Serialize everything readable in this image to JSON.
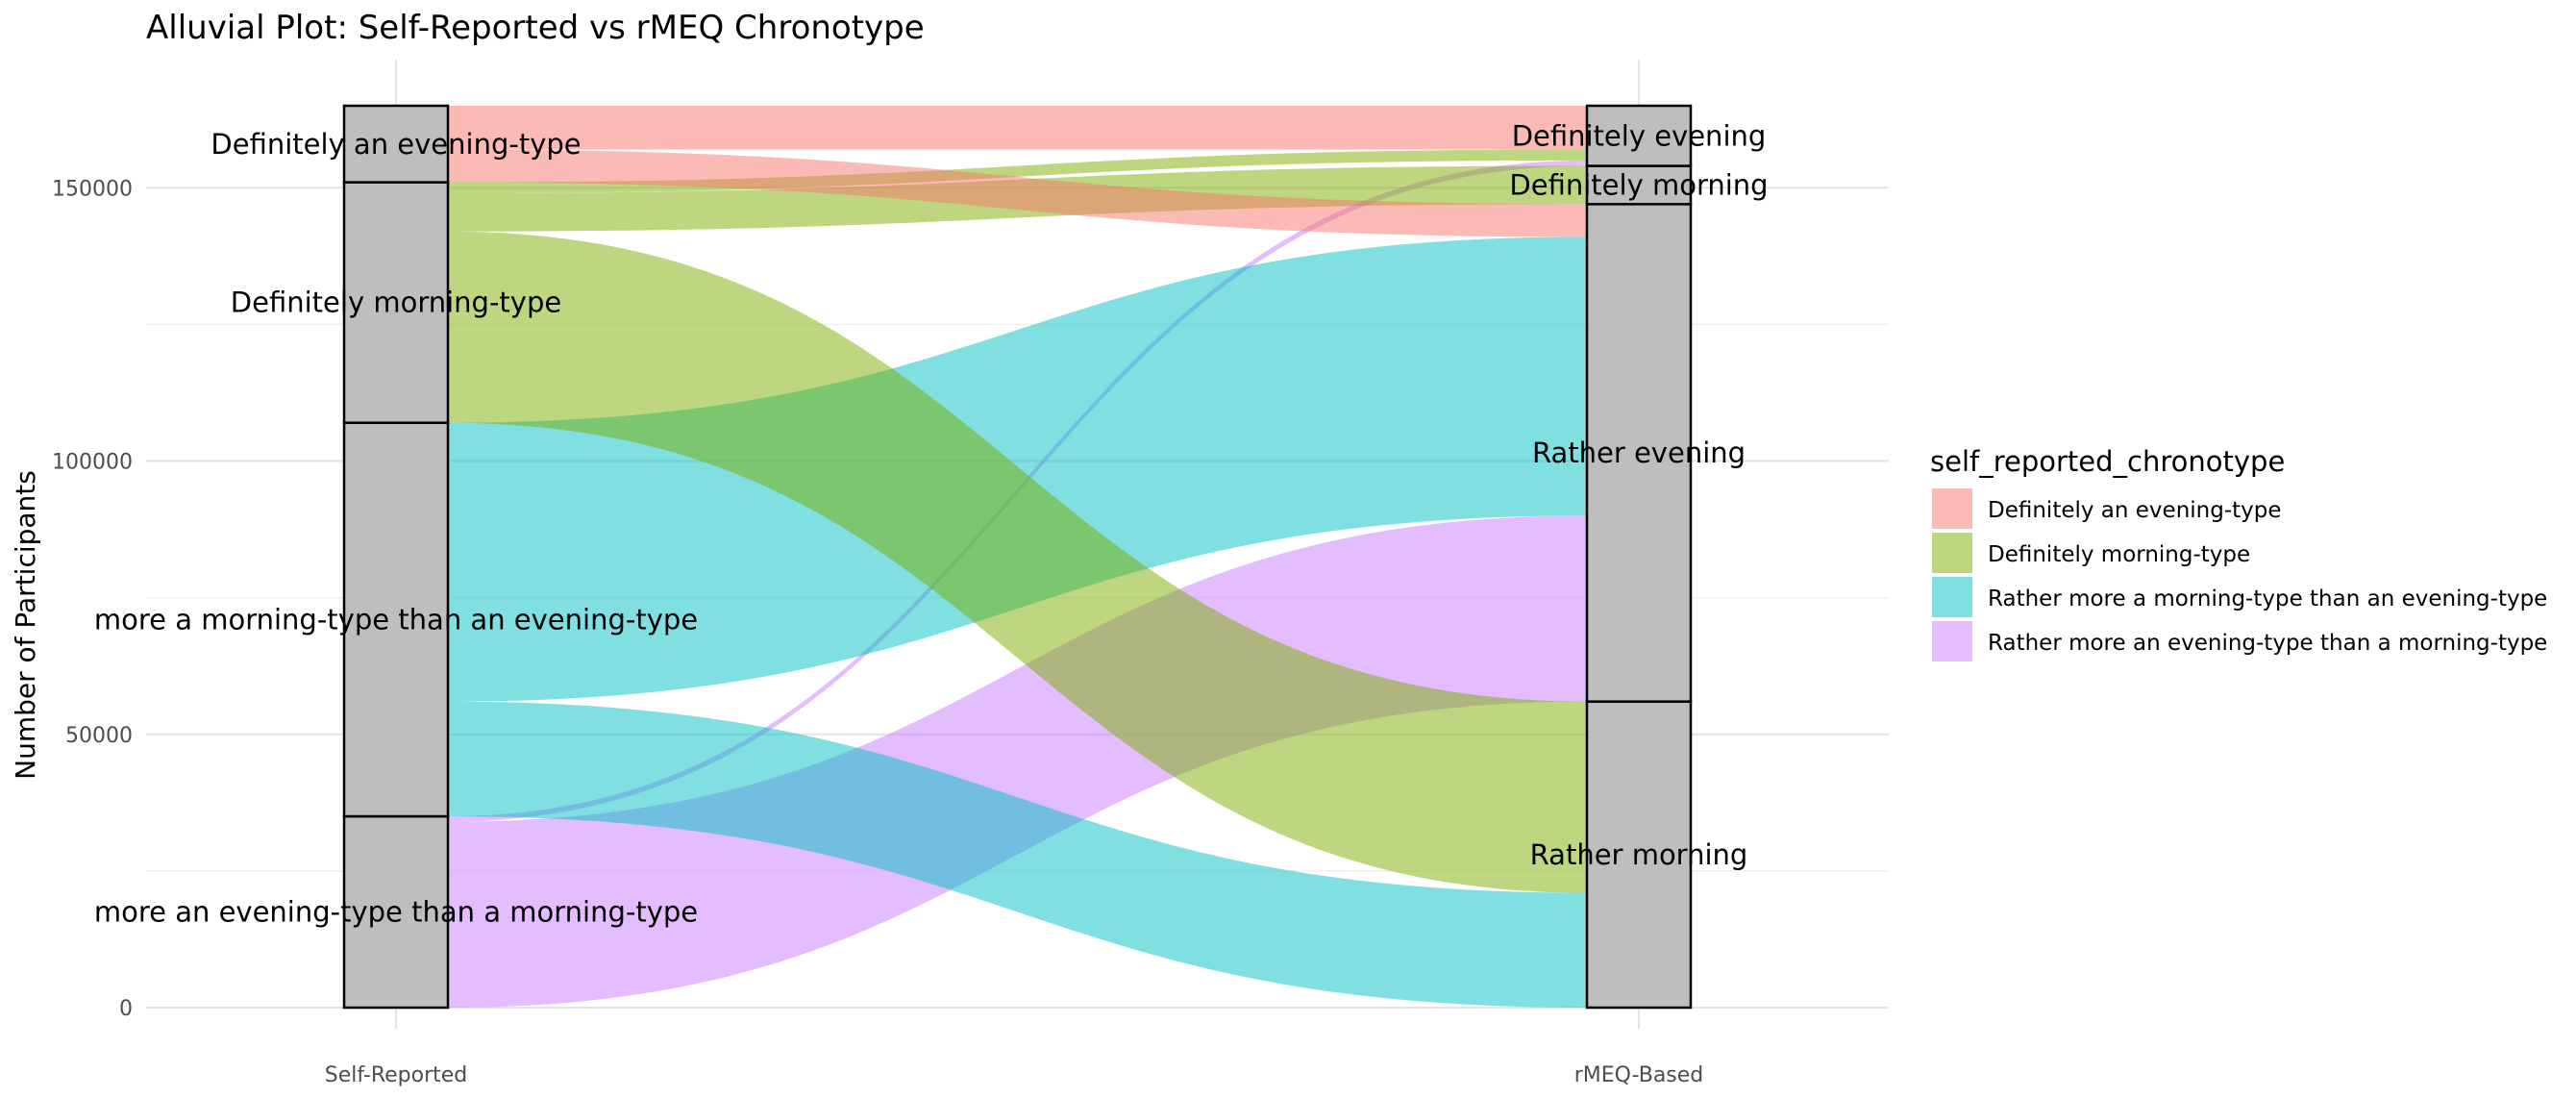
{
  "chart_data": {
    "type": "alluvial",
    "title": "Alluvial Plot: Self-Reported vs rMEQ Chronotype",
    "ylabel": "Number of Participants",
    "xlabel": "",
    "ylim": [
      0,
      165000
    ],
    "yticks": [
      0,
      50000,
      100000,
      150000
    ],
    "ytick_labels": [
      "0",
      "50000",
      "100000",
      "150000"
    ],
    "grid": true,
    "axes": [
      "Self-Reported",
      "rMEQ-Based"
    ],
    "legend": {
      "title": "self_reported_chronotype",
      "position": "right",
      "entries": [
        {
          "label": "Definitely an evening-type",
          "color": "#F8766D"
        },
        {
          "label": "Definitely morning-type",
          "color": "#7CAE00"
        },
        {
          "label": "Rather more a morning-type than an evening-type",
          "color": "#00BFC4"
        },
        {
          "label": "Rather more an evening-type than a morning-type",
          "color": "#C77CFF"
        }
      ]
    },
    "strata": [
      {
        "axis": 0,
        "items": [
          {
            "label": "More an evening-type than a morning-type",
            "display": "more an evening-type than a morning-type",
            "value": 35000
          },
          {
            "label": "Rather more a morning-type than an evening-type",
            "display": "more a morning-type than an evening-type",
            "value": 72000
          },
          {
            "label": "Definitely morning-type",
            "display": "Definitely morning-type",
            "value": 44000
          },
          {
            "label": "Definitely an evening-type",
            "display": "Definitely an evening-type",
            "value": 14000
          }
        ]
      },
      {
        "axis": 1,
        "items": [
          {
            "label": "Rather morning",
            "value": 56000
          },
          {
            "label": "Rather evening",
            "value": 91000
          },
          {
            "label": "Definitely morning",
            "value": 7000
          },
          {
            "label": "Definitely evening",
            "value": 11000
          }
        ]
      }
    ],
    "flows": [
      {
        "from": 0,
        "to": 0,
        "value": 0,
        "series": 3
      },
      {
        "from": 0,
        "to": 1,
        "value": 34000,
        "series": 3
      },
      {
        "from": 0,
        "to": 2,
        "value": 0,
        "series": 3
      },
      {
        "from": 0,
        "to": 3,
        "value": 1000,
        "series": 3
      },
      {
        "from": 1,
        "to": 0,
        "value": 21000,
        "series": 2
      },
      {
        "from": 1,
        "to": 1,
        "value": 51000,
        "series": 2
      },
      {
        "from": 1,
        "to": 2,
        "value": 0,
        "series": 2
      },
      {
        "from": 1,
        "to": 3,
        "value": 0,
        "series": 2
      },
      {
        "from": 2,
        "to": 0,
        "value": 35000,
        "series": 1
      },
      {
        "from": 2,
        "to": 1,
        "value": 0,
        "series": 1
      },
      {
        "from": 2,
        "to": 2,
        "value": 7000,
        "series": 1
      },
      {
        "from": 2,
        "to": 3,
        "value": 2000,
        "series": 1
      },
      {
        "from": 3,
        "to": 0,
        "value": 0,
        "series": 0
      },
      {
        "from": 3,
        "to": 1,
        "value": 6000,
        "series": 0
      },
      {
        "from": 3,
        "to": 2,
        "value": 0,
        "series": 0
      },
      {
        "from": 3,
        "to": 3,
        "value": 8000,
        "series": 0
      }
    ]
  }
}
